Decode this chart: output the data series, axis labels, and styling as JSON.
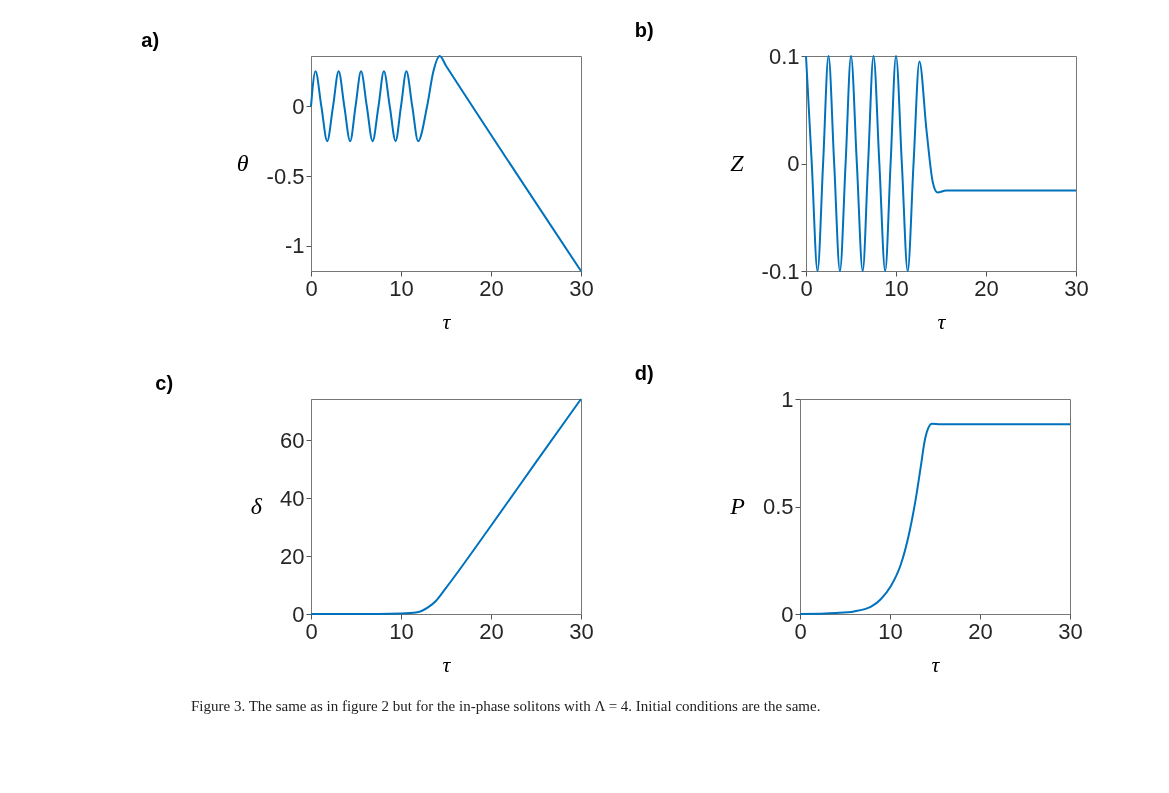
{
  "chart_data": [
    {
      "type": "line",
      "title": "a)",
      "xlabel": "τ",
      "ylabel": "θ",
      "xlim": [
        0,
        30
      ],
      "ylim": [
        -1.18,
        0.36
      ],
      "xticks": [
        0,
        10,
        20,
        30
      ],
      "yticks": [
        -1,
        -0.5,
        0
      ],
      "x": [
        0,
        0.5,
        1.15,
        1.8,
        2.45,
        3.07,
        3.7,
        4.35,
        4.95,
        5.56,
        6.2,
        6.84,
        7.5,
        8.1,
        8.75,
        9.4,
        10.0,
        10.6,
        11.25,
        11.9,
        12.9,
        13.6,
        14.3,
        15,
        30
      ],
      "series": [
        {
          "color": "#0072bd",
          "values": [
            0,
            0.25,
            0,
            -0.25,
            0,
            0.25,
            0,
            -0.25,
            0,
            0.25,
            0,
            -0.25,
            0,
            0.25,
            0,
            -0.25,
            0,
            0.25,
            0,
            -0.25,
            0,
            0.25,
            0.36,
            0.29,
            -1.18
          ]
        }
      ]
    },
    {
      "type": "line",
      "title": "b)",
      "xlabel": "τ",
      "ylabel": "Z",
      "xlim": [
        0,
        30
      ],
      "ylim": [
        -0.1,
        0.1
      ],
      "xticks": [
        0,
        10,
        20,
        30
      ],
      "yticks": [
        -0.1,
        0,
        0.1
      ],
      "x": [
        0,
        0.64,
        1.28,
        1.9,
        2.5,
        3.13,
        3.77,
        4.4,
        5.0,
        5.65,
        6.3,
        6.9,
        7.5,
        8.15,
        8.8,
        9.4,
        10.0,
        10.65,
        11.3,
        11.95,
        12.6,
        13.4,
        14.1,
        14.6,
        15.6,
        30
      ],
      "series": [
        {
          "color": "#0072bd",
          "values": [
            0.1,
            0,
            -0.1,
            0,
            0.1,
            0,
            -0.1,
            0,
            0.1,
            0,
            -0.1,
            0,
            0.1,
            0,
            -0.1,
            0,
            0.1,
            0,
            -0.1,
            0,
            0.095,
            0.03,
            -0.018,
            -0.027,
            -0.025,
            -0.025
          ]
        }
      ]
    },
    {
      "type": "line",
      "title": "c)",
      "xlabel": "τ",
      "ylabel": "δ",
      "xlim": [
        0,
        30
      ],
      "ylim": [
        0,
        74.3
      ],
      "xticks": [
        0,
        10,
        20,
        30
      ],
      "yticks": [
        0,
        20,
        40,
        60
      ],
      "x": [
        0,
        5,
        10,
        11.8,
        13.0,
        13.9,
        14.9,
        20,
        25,
        30
      ],
      "series": [
        {
          "color": "#0072bd",
          "values": [
            0,
            0,
            0.2,
            0.6,
            2.3,
            4.6,
            8.6,
            30.5,
            52.5,
            74.3
          ]
        }
      ]
    },
    {
      "type": "line",
      "title": "d)",
      "xlabel": "τ",
      "ylabel": "P",
      "xlim": [
        0,
        30
      ],
      "ylim": [
        0,
        1
      ],
      "xticks": [
        0,
        10,
        20,
        30
      ],
      "yticks": [
        0,
        0.5,
        1
      ],
      "x": [
        0,
        4,
        6.0,
        7.9,
        9.0,
        10.1,
        11.2,
        12.1,
        12.8,
        13.4,
        13.9,
        14.65,
        15.6,
        30
      ],
      "series": [
        {
          "color": "#0072bd",
          "values": [
            0,
            0.005,
            0.012,
            0.034,
            0.07,
            0.13,
            0.23,
            0.37,
            0.52,
            0.68,
            0.815,
            0.885,
            0.883,
            0.883
          ]
        }
      ],
      "annotations": [
        "Figure 3. The same as in figure 2 but for the in-phase solitons with Λ = 4. Initial conditions are the same."
      ]
    }
  ]
}
